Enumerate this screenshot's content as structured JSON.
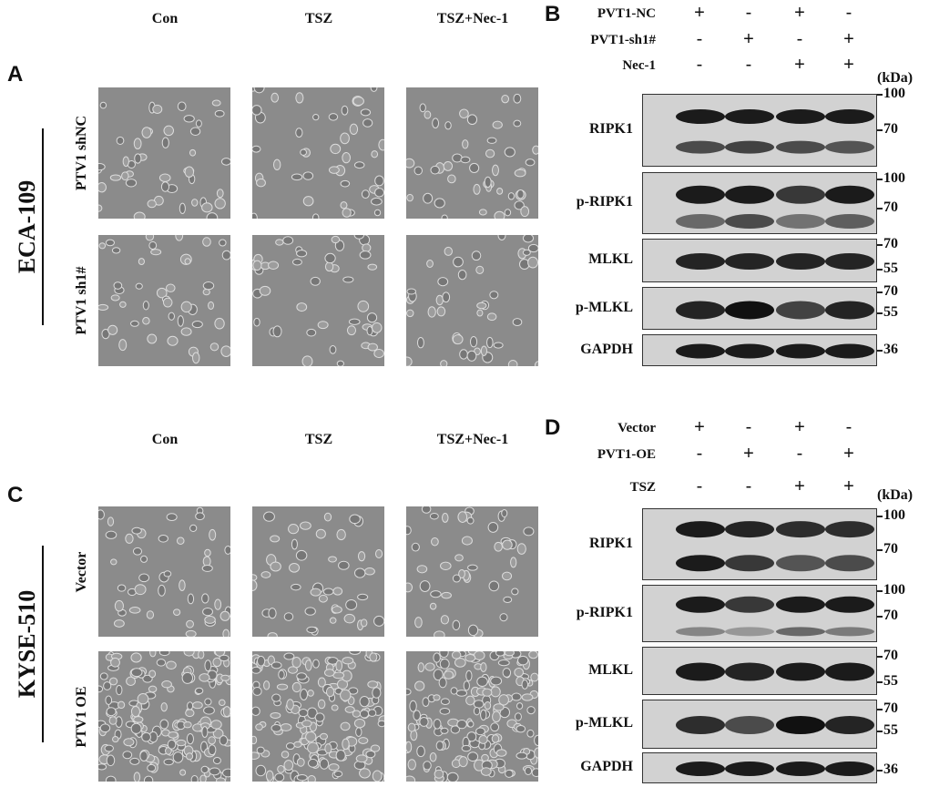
{
  "panel_a": {
    "label": "A",
    "cell_line": "ECA-109",
    "columns": [
      "Con",
      "TSZ",
      "TSZ+Nec-1"
    ],
    "rows": [
      "PTV1 shNC",
      "PTV1 sh1#"
    ]
  },
  "panel_b": {
    "label": "B",
    "unit": "(kDa)",
    "conditions": [
      {
        "name": "PVT1-NC",
        "signs": [
          "+",
          "-",
          "+",
          "-"
        ]
      },
      {
        "name": "PVT1-sh1#",
        "signs": [
          "-",
          "+",
          "-",
          "+"
        ]
      },
      {
        "name": "Nec-1",
        "signs": [
          "-",
          "-",
          "+",
          "+"
        ]
      }
    ],
    "blots": [
      {
        "protein": "RIPK1",
        "markers": [
          "100",
          "70"
        ]
      },
      {
        "protein": "p-RIPK1",
        "markers": [
          "100",
          "70"
        ]
      },
      {
        "protein": "MLKL",
        "markers": [
          "70",
          "55"
        ]
      },
      {
        "protein": "p-MLKL",
        "markers": [
          "70",
          "55"
        ]
      },
      {
        "protein": "GAPDH",
        "markers": [
          "36"
        ]
      }
    ]
  },
  "panel_c": {
    "label": "C",
    "cell_line": "KYSE-510",
    "columns": [
      "Con",
      "TSZ",
      "TSZ+Nec-1"
    ],
    "rows": [
      "Vector",
      "PTV1 OE"
    ]
  },
  "panel_d": {
    "label": "D",
    "unit": "(kDa)",
    "conditions": [
      {
        "name": "Vector",
        "signs": [
          "+",
          "-",
          "+",
          "-"
        ]
      },
      {
        "name": "PVT1-OE",
        "signs": [
          "-",
          "+",
          "-",
          "+"
        ]
      },
      {
        "name": "TSZ",
        "signs": [
          "-",
          "-",
          "+",
          "+"
        ]
      }
    ],
    "blots": [
      {
        "protein": "RIPK1",
        "markers": [
          "100",
          "70"
        ]
      },
      {
        "protein": "p-RIPK1",
        "markers": [
          "100",
          "70"
        ]
      },
      {
        "protein": "MLKL",
        "markers": [
          "70",
          "55"
        ]
      },
      {
        "protein": "p-MLKL",
        "markers": [
          "70",
          "55"
        ]
      },
      {
        "protein": "GAPDH",
        "markers": [
          "36"
        ]
      }
    ]
  }
}
